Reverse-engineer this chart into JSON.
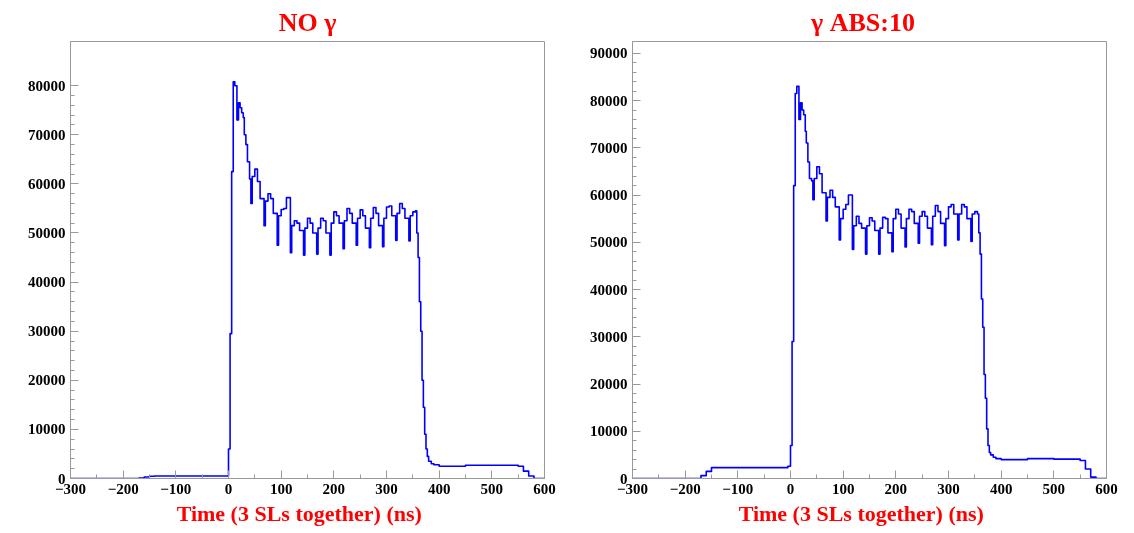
{
  "chart_data": [
    {
      "type": "histogram",
      "title": "NO γ",
      "xlabel": "Time    (3 SLs together) (ns)",
      "color": "#0000ff",
      "xlim": [
        -300,
        600
      ],
      "xticks": [
        -300,
        -200,
        -100,
        0,
        100,
        200,
        300,
        400,
        500,
        600
      ],
      "ylim": [
        0,
        89000
      ],
      "yticks": [
        0,
        10000,
        20000,
        30000,
        40000,
        50000,
        60000,
        70000,
        80000
      ],
      "bins": [
        -300,
        -170,
        -160,
        -150,
        -140,
        -5,
        0,
        3,
        6,
        9,
        12,
        16,
        19,
        22,
        25,
        28,
        30,
        33,
        36,
        40,
        42.5,
        45,
        50,
        55,
        60,
        67.5,
        70,
        75,
        80,
        85,
        92.5,
        95,
        100,
        105,
        110,
        117.5,
        120,
        125,
        130,
        135,
        142.5,
        145,
        150,
        155,
        160,
        167.5,
        170,
        175,
        180,
        185,
        192.5,
        195,
        200,
        205,
        210,
        217.5,
        220,
        225,
        230,
        235,
        242.5,
        245,
        250,
        255,
        260,
        267.5,
        270,
        275,
        280,
        285,
        292.5,
        295,
        300,
        305,
        310,
        317.5,
        320,
        325,
        330,
        335,
        342.5,
        345,
        350,
        355,
        357.5,
        360,
        362.5,
        365,
        367.5,
        370,
        372.5,
        375,
        377.5,
        380,
        385,
        390,
        400,
        450,
        500,
        550,
        560,
        570,
        580,
        600
      ],
      "values": [
        0,
        100,
        300,
        450,
        500,
        500,
        6000,
        29500,
        62500,
        80800,
        80000,
        73000,
        76500,
        75500,
        74500,
        73500,
        70000,
        68000,
        64500,
        61000,
        56000,
        61500,
        63000,
        60500,
        57000,
        51500,
        56500,
        58000,
        57000,
        54000,
        47500,
        53500,
        54800,
        55000,
        57200,
        46000,
        51500,
        52500,
        52000,
        50500,
        45500,
        51000,
        53000,
        52000,
        50000,
        45700,
        51000,
        53000,
        52500,
        50000,
        45500,
        52000,
        54300,
        53500,
        52000,
        46800,
        52500,
        55000,
        54000,
        52000,
        47500,
        53000,
        54700,
        53500,
        51000,
        47000,
        53000,
        55200,
        54000,
        51500,
        47200,
        53000,
        55300,
        55500,
        53500,
        48500,
        54000,
        56000,
        55000,
        53000,
        48400,
        53500,
        54300,
        54500,
        50000,
        45000,
        36000,
        30000,
        20000,
        14500,
        9000,
        6000,
        4500,
        3500,
        3000,
        2800,
        2500,
        2700,
        2700,
        2500,
        1500,
        500,
        0
      ]
    },
    {
      "type": "histogram",
      "title": "γ   ABS:10",
      "xlabel": "Time    (3 SLs together) (ns)",
      "color": "#0000ff",
      "xlim": [
        -300,
        600
      ],
      "xticks": [
        -300,
        -200,
        -100,
        0,
        100,
        200,
        300,
        400,
        500,
        600
      ],
      "ylim": [
        0,
        92500
      ],
      "yticks": [
        0,
        10000,
        20000,
        30000,
        40000,
        50000,
        60000,
        70000,
        80000,
        90000
      ],
      "bins": [
        -300,
        -170,
        -160,
        -150,
        -140,
        -5,
        0,
        3,
        6,
        9,
        12,
        16,
        19,
        22,
        25,
        28,
        30,
        33,
        36,
        40,
        42.5,
        45,
        50,
        55,
        60,
        67.5,
        70,
        75,
        80,
        85,
        92.5,
        95,
        100,
        105,
        110,
        117.5,
        120,
        125,
        130,
        135,
        142.5,
        145,
        150,
        155,
        160,
        167.5,
        170,
        175,
        180,
        185,
        192.5,
        195,
        200,
        205,
        210,
        217.5,
        220,
        225,
        230,
        235,
        242.5,
        245,
        250,
        255,
        260,
        267.5,
        270,
        275,
        280,
        285,
        292.5,
        295,
        300,
        305,
        310,
        317.5,
        320,
        325,
        330,
        335,
        342.5,
        345,
        350,
        355,
        357.5,
        360,
        362.5,
        365,
        367.5,
        370,
        372.5,
        375,
        377.5,
        380,
        385,
        390,
        400,
        450,
        500,
        550,
        560,
        570,
        580,
        600
      ],
      "values": [
        0,
        600,
        1500,
        2300,
        2300,
        2600,
        7000,
        29000,
        62000,
        81500,
        83000,
        76000,
        79500,
        78000,
        77000,
        73500,
        71000,
        67000,
        63500,
        63000,
        59000,
        63500,
        66000,
        64500,
        60500,
        54500,
        59500,
        61000,
        59500,
        57500,
        50500,
        55000,
        57000,
        58000,
        60000,
        48500,
        53500,
        55500,
        54000,
        53000,
        47500,
        53500,
        55200,
        54500,
        52500,
        47500,
        53000,
        55300,
        55000,
        52000,
        48000,
        55000,
        57000,
        56000,
        53000,
        49000,
        55000,
        57000,
        56500,
        54000,
        49800,
        55500,
        56500,
        55500,
        53000,
        49500,
        55500,
        57800,
        56500,
        54000,
        49300,
        55000,
        57500,
        58000,
        56000,
        50500,
        56000,
        58000,
        57500,
        55000,
        50200,
        56000,
        56500,
        56000,
        52000,
        47500,
        38000,
        32000,
        22000,
        17000,
        10500,
        7000,
        5500,
        5000,
        4500,
        4200,
        4000,
        4200,
        4100,
        3800,
        2000,
        300,
        0
      ]
    }
  ]
}
